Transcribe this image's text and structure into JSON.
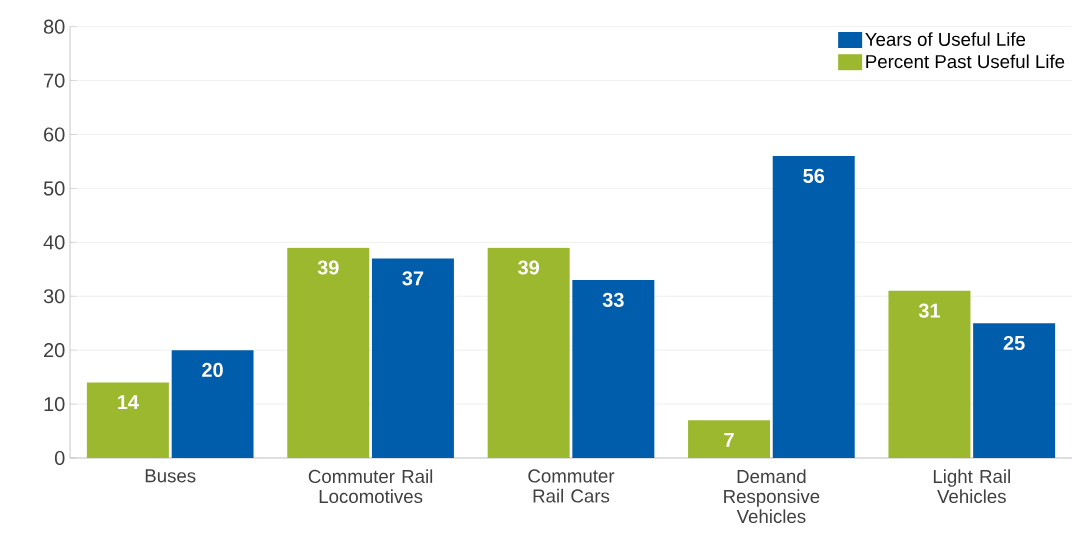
{
  "chart_data": {
    "type": "bar",
    "categories": [
      "Buses",
      "Commuter Rail Locomotives",
      "Commuter Rail Cars",
      "Demand Responsive Vehicles",
      "Light Rail Vehicles"
    ],
    "series": [
      {
        "name": "Percent Past Useful Life",
        "color": "#9bb82e",
        "values": [
          14,
          39,
          39,
          7,
          31
        ]
      },
      {
        "name": "Years of Useful Life",
        "color": "#005dab",
        "values": [
          20,
          37,
          33,
          56,
          25
        ]
      }
    ],
    "ylim": [
      0,
      80
    ],
    "yticks": [
      0,
      10,
      20,
      30,
      40,
      50,
      60,
      70,
      80
    ],
    "grid": "y",
    "legend": "top right",
    "data_labels": true
  }
}
